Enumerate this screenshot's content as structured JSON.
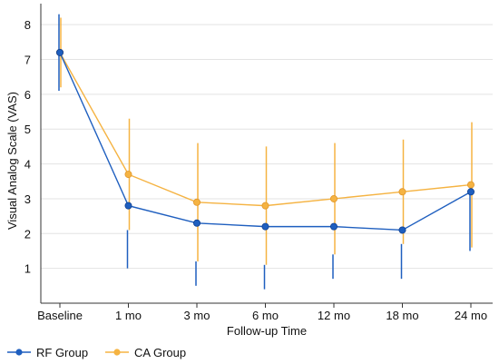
{
  "chart_data": {
    "type": "line",
    "title": "",
    "xlabel": "Follow-up Time",
    "ylabel": "Visual Analog Scale (VAS)",
    "categories": [
      "Baseline",
      "1 mo",
      "3 mo",
      "6 mo",
      "12 mo",
      "18 mo",
      "24 mo"
    ],
    "ylim": [
      0,
      8.5
    ],
    "yticks": [
      1,
      2,
      3,
      4,
      5,
      6,
      7,
      8
    ],
    "grid": true,
    "legend_position": "bottom-left",
    "series": [
      {
        "name": "RF Group",
        "color": "#1f5fbf",
        "values": [
          7.2,
          2.8,
          2.3,
          2.2,
          2.2,
          2.1,
          3.2
        ],
        "err_low": [
          6.1,
          1.0,
          0.5,
          0.4,
          0.7,
          0.7,
          1.5
        ],
        "err_high": [
          8.3,
          2.1,
          1.2,
          1.1,
          1.4,
          1.7,
          3.2
        ]
      },
      {
        "name": "CA Group",
        "color": "#f5b342",
        "values": [
          7.2,
          3.7,
          2.9,
          2.8,
          3.0,
          3.2,
          3.4
        ],
        "err_low": [
          6.2,
          2.1,
          1.2,
          1.1,
          1.4,
          1.7,
          1.6
        ],
        "err_high": [
          8.2,
          5.3,
          4.6,
          4.5,
          4.6,
          4.7,
          5.2
        ]
      }
    ]
  }
}
